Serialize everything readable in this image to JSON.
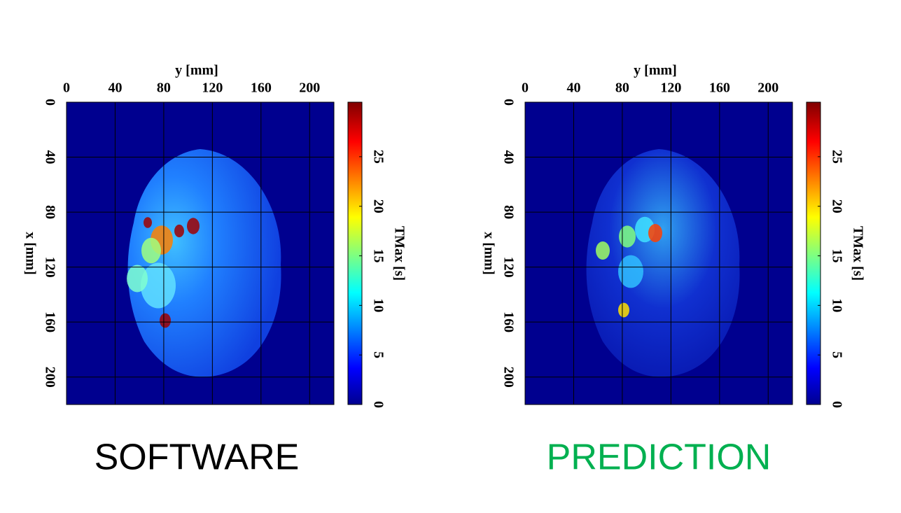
{
  "chart_data": [
    {
      "type": "heatmap",
      "xlabel": "y [mm]",
      "ylabel": "x [mm]",
      "xlim": [
        0,
        220
      ],
      "xticks": [
        0,
        40,
        80,
        120,
        160,
        200
      ],
      "ylim": [
        0,
        220
      ],
      "yticks": [
        0,
        40,
        80,
        120,
        160,
        200
      ],
      "grid": true,
      "colorbar_label": "TMax [s]",
      "clim": [
        0,
        30.5
      ],
      "cticks": [
        0,
        5,
        10,
        15,
        20,
        25
      ],
      "caption": "SOFTWARE",
      "caption_color": "#000000"
    },
    {
      "type": "heatmap",
      "xlabel": "y [mm]",
      "ylabel": "x [mm]",
      "xlim": [
        0,
        220
      ],
      "xticks": [
        0,
        40,
        80,
        120,
        160,
        200
      ],
      "ylim": [
        0,
        220
      ],
      "yticks": [
        0,
        40,
        80,
        120,
        160,
        200
      ],
      "grid": true,
      "colorbar_label": "TMax [s]",
      "clim": [
        0,
        30.5
      ],
      "cticks": [
        0,
        5,
        10,
        15,
        20,
        25
      ],
      "caption": "PREDICTION",
      "caption_color": "#00b050"
    }
  ]
}
